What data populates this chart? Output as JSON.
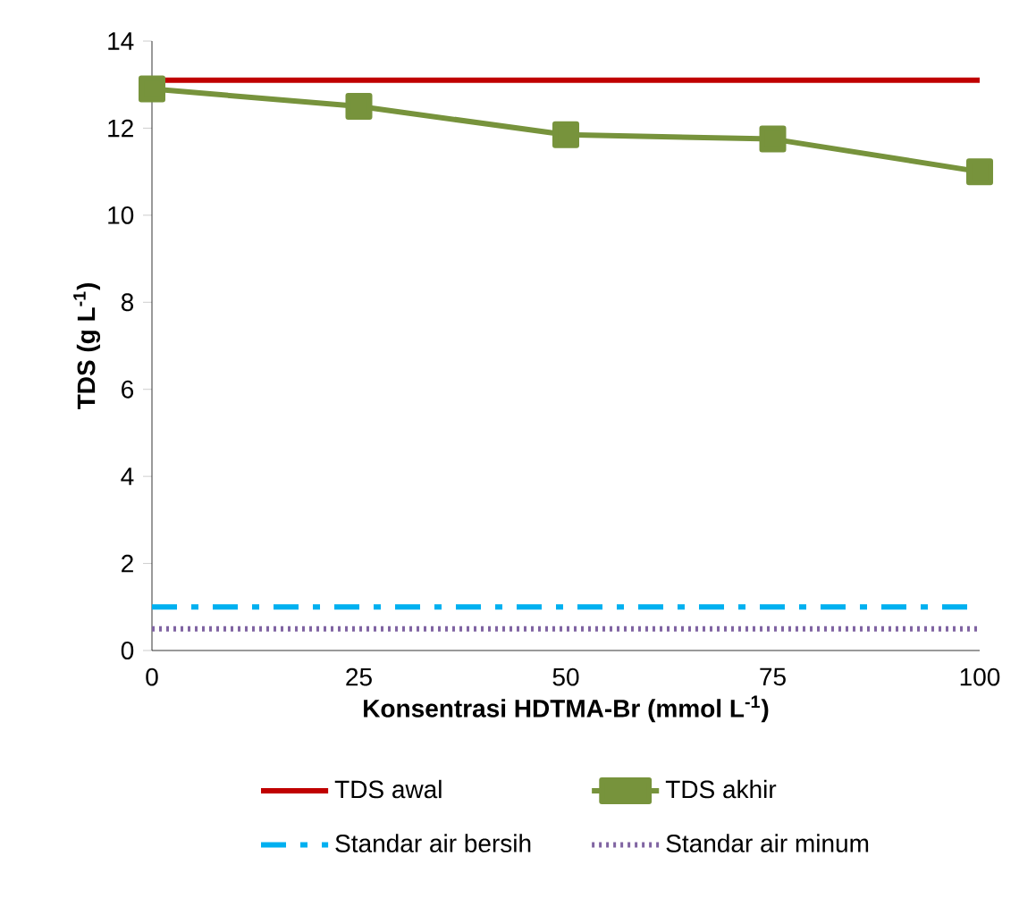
{
  "chart_data": {
    "type": "line",
    "xlabel": "**Konsentrasi HDTMA-Br (mmol L$^{-1}$)**",
    "ylabel": "**TDS (g L$^{-1}$)**",
    "xlim": [
      0,
      100
    ],
    "xticks": [
      0,
      25,
      50,
      75,
      100
    ],
    "ylim": [
      0,
      14
    ],
    "yticks": [
      0,
      2,
      4,
      6,
      8,
      10,
      12,
      14
    ],
    "grid": false,
    "legend": "bottom",
    "series": [
      {
        "name": "TDS awal",
        "color": "#c00000",
        "x": [
          0,
          100
        ],
        "values": [
          13.1,
          13.1
        ],
        "marker": "none",
        "line_style": "solid"
      },
      {
        "name": "TDS akhir",
        "color": "#77933c",
        "x": [
          0,
          25,
          50,
          75,
          100
        ],
        "values": [
          12.9,
          12.5,
          11.85,
          11.75,
          11.0
        ],
        "marker": "square",
        "line_style": "solid"
      },
      {
        "name": "Standar air bersih",
        "color": "#00b0f0",
        "x": [
          0,
          100
        ],
        "values": [
          1.0,
          1.0
        ],
        "marker": "none",
        "line_style": "dashdot"
      },
      {
        "name": "Standar air minum",
        "color": "#8064a2",
        "x": [
          0,
          100
        ],
        "values": [
          0.5,
          0.5
        ],
        "marker": "none",
        "line_style": "dotted"
      }
    ]
  }
}
